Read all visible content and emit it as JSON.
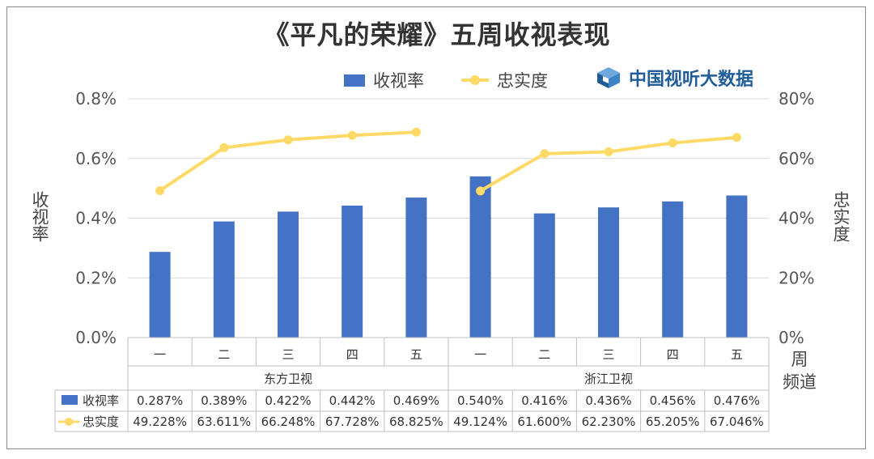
{
  "chart_data": {
    "type": "bar+line",
    "title": "《平凡的荣耀》五周收视表现",
    "categories": [
      "一",
      "二",
      "三",
      "四",
      "五",
      "一",
      "二",
      "三",
      "四",
      "五"
    ],
    "groups": [
      {
        "name": "东方卫视",
        "span": 5
      },
      {
        "name": "浙江卫视",
        "span": 5
      }
    ],
    "axis_category_labels": [
      "周",
      "频道"
    ],
    "series": [
      {
        "name": "收视率",
        "type": "bar",
        "axis": "left",
        "color": "#4472C4",
        "values": [
          0.287,
          0.389,
          0.422,
          0.442,
          0.469,
          0.54,
          0.416,
          0.436,
          0.456,
          0.476
        ],
        "labels": [
          "0.287%",
          "0.389%",
          "0.422%",
          "0.442%",
          "0.469%",
          "0.540%",
          "0.416%",
          "0.436%",
          "0.456%",
          "0.476%"
        ]
      },
      {
        "name": "忠实度",
        "type": "line",
        "axis": "right",
        "color": "#FFD966",
        "values": [
          49.228,
          63.611,
          66.248,
          67.728,
          68.825,
          49.124,
          61.6,
          62.23,
          65.205,
          67.046
        ],
        "labels": [
          "49.228%",
          "63.611%",
          "66.248%",
          "67.728%",
          "68.825%",
          "49.124%",
          "61.600%",
          "62.230%",
          "65.205%",
          "67.046%"
        ]
      }
    ],
    "left_axis": {
      "label": "收视率",
      "min": 0,
      "max": 0.8,
      "ticks": [
        "0.0%",
        "0.2%",
        "0.4%",
        "0.6%",
        "0.8%"
      ]
    },
    "right_axis": {
      "label": "忠实度",
      "min": 0,
      "max": 80,
      "ticks": [
        "0%",
        "20%",
        "40%",
        "60%",
        "80%"
      ]
    },
    "legend": {
      "position": "top",
      "items": [
        "收视率",
        "忠实度"
      ]
    },
    "grid": true
  },
  "logo": {
    "text": "中国视听大数据",
    "icon": "cube-logo-icon"
  }
}
